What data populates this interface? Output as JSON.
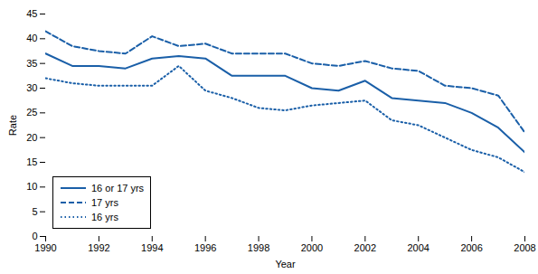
{
  "chart_data": {
    "type": "line",
    "x": [
      1990,
      1991,
      1992,
      1993,
      1994,
      1995,
      1996,
      1997,
      1998,
      1999,
      2000,
      2001,
      2002,
      2003,
      2004,
      2005,
      2006,
      2007,
      2008
    ],
    "series": [
      {
        "name": "16 or 17 yrs",
        "color": "#1a5fa8",
        "line_style": "solid",
        "values": [
          37.0,
          34.5,
          34.5,
          34.0,
          36.0,
          36.5,
          36.0,
          32.5,
          32.5,
          32.5,
          30.0,
          29.5,
          31.5,
          28.0,
          27.5,
          27.0,
          25.0,
          22.0,
          17.0
        ]
      },
      {
        "name": "17 yrs",
        "color": "#1a5fa8",
        "line_style": "dashed",
        "values": [
          41.5,
          38.5,
          37.5,
          37.0,
          40.5,
          38.5,
          39.0,
          37.0,
          37.0,
          37.0,
          35.0,
          34.5,
          35.5,
          34.0,
          33.5,
          30.5,
          30.0,
          28.5,
          21.0
        ]
      },
      {
        "name": "16 yrs",
        "color": "#1a5fa8",
        "line_style": "dotted",
        "values": [
          32.0,
          31.0,
          30.5,
          30.5,
          30.5,
          34.5,
          29.5,
          28.0,
          26.0,
          25.5,
          26.5,
          27.0,
          27.5,
          23.5,
          22.5,
          20.0,
          17.5,
          16.0,
          13.0
        ]
      }
    ],
    "xlabel": "Year",
    "ylabel": "Rate",
    "xlim": [
      1990,
      2008
    ],
    "ylim": [
      0,
      45
    ],
    "xticks": [
      1990,
      1992,
      1994,
      1996,
      1998,
      2000,
      2002,
      2004,
      2006,
      2008
    ],
    "yticks": [
      0,
      5,
      10,
      15,
      20,
      25,
      30,
      35,
      40,
      45
    ],
    "grid": false,
    "legend": "lower left"
  }
}
